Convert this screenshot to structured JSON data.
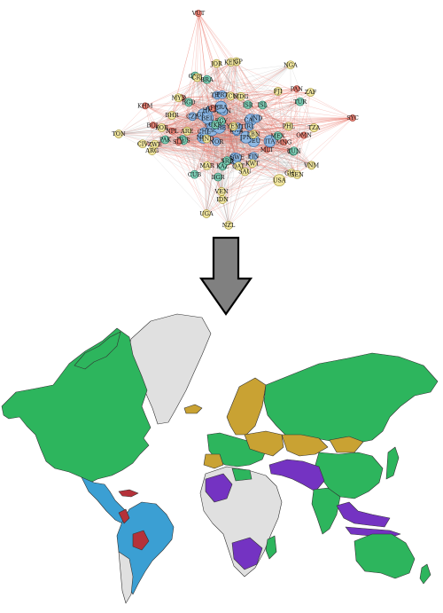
{
  "network": {
    "clusters": {
      "green": {
        "fill": "#7fcfb7",
        "stroke": "#2f7f66"
      },
      "blue": {
        "fill": "#8fb8e3",
        "stroke": "#3c6da3"
      },
      "yellow": {
        "fill": "#f2e7a1",
        "stroke": "#a79a3b"
      },
      "red": {
        "fill": "#e98376",
        "stroke": "#a33c30"
      }
    },
    "nodes": [
      {
        "id": "VUT",
        "cluster": "red"
      },
      {
        "id": "KOR",
        "cluster": "yellow"
      },
      {
        "id": "MLT",
        "cluster": "red"
      },
      {
        "id": "IRN",
        "cluster": "green"
      },
      {
        "id": "COL",
        "cluster": "green"
      },
      {
        "id": "LKA",
        "cluster": "red"
      },
      {
        "id": "BGR",
        "cluster": "green"
      },
      {
        "id": "DMA",
        "cluster": "green"
      },
      {
        "id": "POL",
        "cluster": "blue"
      },
      {
        "id": "HUN",
        "cluster": "blue"
      },
      {
        "id": "GBR",
        "cluster": "blue"
      },
      {
        "id": "SDR",
        "cluster": "blue"
      },
      {
        "id": "TUR",
        "cluster": "green"
      },
      {
        "id": "TON",
        "cluster": "yellow"
      },
      {
        "id": "DEU",
        "cluster": "blue"
      },
      {
        "id": "CAN",
        "cluster": "blue"
      },
      {
        "id": "NLD",
        "cluster": "blue"
      },
      {
        "id": "FRA",
        "cluster": "blue"
      },
      {
        "id": "FIN",
        "cluster": "blue"
      },
      {
        "id": "ESP",
        "cluster": "blue"
      },
      {
        "id": "BEL",
        "cluster": "blue"
      },
      {
        "id": "USA",
        "cluster": "yellow"
      },
      {
        "id": "NOR",
        "cluster": "blue"
      },
      {
        "id": "ITA",
        "cluster": "blue"
      },
      {
        "id": "AUS",
        "cluster": "blue"
      },
      {
        "id": "ARE",
        "cluster": "yellow"
      },
      {
        "id": "HKG",
        "cluster": "blue"
      },
      {
        "id": "SGP",
        "cluster": "yellow"
      },
      {
        "id": "JPN",
        "cluster": "blue"
      },
      {
        "id": "CHE",
        "cluster": "blue"
      },
      {
        "id": "MEX",
        "cluster": "green"
      },
      {
        "id": "BRA",
        "cluster": "green"
      },
      {
        "id": "IND",
        "cluster": "blue"
      },
      {
        "id": "RUS",
        "cluster": "green"
      },
      {
        "id": "ARG",
        "cluster": "yellow"
      },
      {
        "id": "CHL",
        "cluster": "blue"
      },
      {
        "id": "PER",
        "cluster": "red"
      },
      {
        "id": "ECU",
        "cluster": "yellow"
      },
      {
        "id": "VEN",
        "cluster": "yellow"
      },
      {
        "id": "NGA",
        "cluster": "yellow"
      },
      {
        "id": "ZAF",
        "cluster": "yellow"
      },
      {
        "id": "KEN",
        "cluster": "yellow"
      },
      {
        "id": "EGY",
        "cluster": "green"
      },
      {
        "id": "MAR",
        "cluster": "yellow"
      },
      {
        "id": "SAU",
        "cluster": "yellow"
      },
      {
        "id": "THA",
        "cluster": "blue"
      },
      {
        "id": "IDN",
        "cluster": "yellow"
      },
      {
        "id": "PHL",
        "cluster": "yellow"
      },
      {
        "id": "MYS",
        "cluster": "yellow"
      },
      {
        "id": "VNM",
        "cluster": "yellow"
      },
      {
        "id": "PAK",
        "cluster": "green"
      },
      {
        "id": "BGD",
        "cluster": "green"
      },
      {
        "id": "UGA",
        "cluster": "yellow"
      },
      {
        "id": "NZL",
        "cluster": "yellow"
      },
      {
        "id": "GHA",
        "cluster": "yellow"
      },
      {
        "id": "ISL",
        "cluster": "green"
      },
      {
        "id": "IRL",
        "cluster": "blue"
      },
      {
        "id": "PRT",
        "cluster": "blue"
      },
      {
        "id": "GRC",
        "cluster": "green"
      },
      {
        "id": "SWE",
        "cluster": "blue"
      },
      {
        "id": "DNK",
        "cluster": "blue"
      },
      {
        "id": "AUT",
        "cluster": "blue"
      },
      {
        "id": "CZE",
        "cluster": "blue"
      },
      {
        "id": "ISR",
        "cluster": "green"
      },
      {
        "id": "UKR",
        "cluster": "green"
      },
      {
        "id": "KAZ",
        "cluster": "green"
      },
      {
        "id": "MNG",
        "cluster": "red"
      },
      {
        "id": "QAT",
        "cluster": "yellow"
      },
      {
        "id": "SYC",
        "cluster": "red"
      },
      {
        "id": "MDG",
        "cluster": "yellow"
      },
      {
        "id": "YEM",
        "cluster": "yellow"
      },
      {
        "id": "AFG",
        "cluster": "red"
      },
      {
        "id": "HND",
        "cluster": "yellow"
      },
      {
        "id": "NPL",
        "cluster": "red"
      },
      {
        "id": "TZA",
        "cluster": "yellow"
      },
      {
        "id": "ZWE",
        "cluster": "yellow"
      },
      {
        "id": "CUB",
        "cluster": "green"
      },
      {
        "id": "JOR",
        "cluster": "yellow"
      },
      {
        "id": "SRB",
        "cluster": "green"
      },
      {
        "id": "TUN",
        "cluster": "green"
      },
      {
        "id": "LBN",
        "cluster": "yellow"
      },
      {
        "id": "KWT",
        "cluster": "yellow"
      },
      {
        "id": "OMN",
        "cluster": "red"
      },
      {
        "id": "SLV",
        "cluster": "red"
      },
      {
        "id": "KHM",
        "cluster": "red"
      },
      {
        "id": "BHR",
        "cluster": "yellow"
      },
      {
        "id": "SEN",
        "cluster": "yellow"
      },
      {
        "id": "CRI",
        "cluster": "yellow"
      },
      {
        "id": "PAN",
        "cluster": "red"
      },
      {
        "id": "CIV",
        "cluster": "yellow"
      },
      {
        "id": "FJI",
        "cluster": "yellow"
      },
      {
        "id": "BOL",
        "cluster": "red"
      }
    ]
  },
  "map": {
    "colors": {
      "green": "#2db55d",
      "blue": "#3b9fd3",
      "gold": "#c9a233",
      "purple": "#7433c2",
      "red": "#b5323a",
      "grey": "#e0e0e0",
      "border": "#333333"
    }
  }
}
